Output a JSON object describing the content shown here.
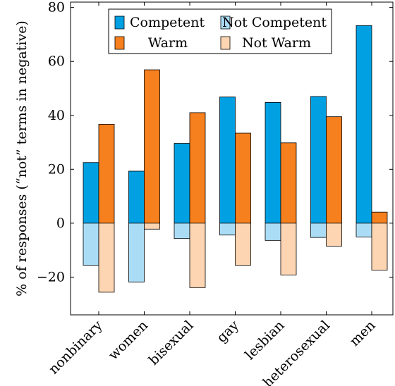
{
  "chart_data": {
    "type": "bar",
    "ylabel": "% of responses (“not” terms in negative)",
    "ylim": [
      -34,
      82
    ],
    "yticks": [
      -20,
      0,
      20,
      40,
      60,
      80
    ],
    "ytick_labels": [
      "−20",
      "0",
      "20",
      "40",
      "60",
      "80"
    ],
    "categories": [
      "nonbinary",
      "women",
      "bisexual",
      "gay",
      "lesbian",
      "heterosexual",
      "men"
    ],
    "series": [
      {
        "name": "Competent",
        "color": "#00a0e3",
        "values": [
          22.5,
          19.3,
          29.6,
          46.8,
          44.8,
          47.0,
          73.3
        ]
      },
      {
        "name": "Not Competent",
        "color": "#aadcf5",
        "values": [
          -15.6,
          -21.8,
          -5.7,
          -4.4,
          -6.4,
          -5.3,
          -5.1
        ]
      },
      {
        "name": "Warm",
        "color": "#f7801e",
        "values": [
          36.7,
          56.9,
          41.0,
          33.4,
          29.8,
          39.5,
          4.1
        ]
      },
      {
        "name": "Not Warm",
        "color": "#fdd5b2",
        "values": [
          -25.6,
          -2.2,
          -23.9,
          -15.6,
          -19.2,
          -8.5,
          -17.4
        ]
      }
    ],
    "legend": {
      "placement": "top",
      "entries": [
        "Competent",
        "Not Competent",
        "Warm",
        "Not Warm"
      ]
    },
    "grid": false
  }
}
